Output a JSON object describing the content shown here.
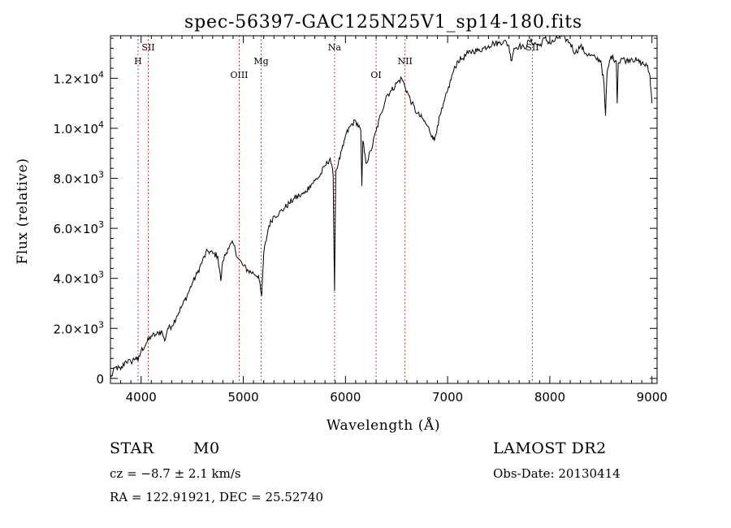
{
  "chart_data": {
    "type": "line",
    "title": "spec-56397-GAC125N25V1_sp14-180.fits",
    "xlabel": "Wavelength (Å)",
    "ylabel": "Flux (relative)",
    "xlim": [
      3700,
      9050
    ],
    "ylim": [
      -200,
      13700
    ],
    "x_ticks": [
      {
        "value": 4000,
        "label": "4000"
      },
      {
        "value": 5000,
        "label": "5000"
      },
      {
        "value": 6000,
        "label": "6000"
      },
      {
        "value": 7000,
        "label": "7000"
      },
      {
        "value": 8000,
        "label": "8000"
      },
      {
        "value": 9000,
        "label": "9000"
      }
    ],
    "y_ticks": [
      {
        "value": 0,
        "label": "0"
      },
      {
        "value": 2000,
        "mant": "2.0×10",
        "exp": "3"
      },
      {
        "value": 4000,
        "mant": "4.0×10",
        "exp": "3"
      },
      {
        "value": 6000,
        "mant": "6.0×10",
        "exp": "3"
      },
      {
        "value": 8000,
        "mant": "8.0×10",
        "exp": "3"
      },
      {
        "value": 10000,
        "mant": "1.0×10",
        "exp": "4"
      },
      {
        "value": 12000,
        "mant": "1.2×10",
        "exp": "4"
      }
    ],
    "line_color": "#000000",
    "marker_color": "#cc0000",
    "grid": false,
    "lines": [
      {
        "label": "H",
        "wavelength": 3970,
        "label_level": 2
      },
      {
        "label": "SII",
        "wavelength": 4070,
        "label_level": 1
      },
      {
        "label": "OIII",
        "wavelength": 4960,
        "label_level": 3
      },
      {
        "label": "Mg",
        "wavelength": 5175,
        "label_level": 2
      },
      {
        "label": "Na",
        "wavelength": 5893,
        "label_level": 1
      },
      {
        "label": "OI",
        "wavelength": 6300,
        "label_level": 3
      },
      {
        "label": "NII",
        "wavelength": 6583,
        "label_level": 2
      },
      {
        "label": "SII",
        "wavelength": 7830,
        "label_level": 1
      }
    ],
    "spectrum": {
      "x": [
        3700,
        3750,
        3800,
        3850,
        3900,
        3950,
        3970,
        4000,
        4050,
        4100,
        4150,
        4200,
        4230,
        4260,
        4300,
        4350,
        4400,
        4450,
        4500,
        4550,
        4600,
        4650,
        4700,
        4750,
        4780,
        4800,
        4850,
        4900,
        4950,
        5000,
        5050,
        5100,
        5150,
        5170,
        5180,
        5200,
        5250,
        5300,
        5350,
        5400,
        5450,
        5500,
        5550,
        5600,
        5650,
        5700,
        5750,
        5800,
        5850,
        5880,
        5893,
        5905,
        5930,
        5980,
        6000,
        6050,
        6100,
        6150,
        6160,
        6170,
        6200,
        6250,
        6300,
        6350,
        6400,
        6450,
        6500,
        6550,
        6580,
        6620,
        6650,
        6700,
        6750,
        6800,
        6850,
        6870,
        6900,
        6950,
        7000,
        7050,
        7100,
        7150,
        7200,
        7250,
        7300,
        7350,
        7400,
        7450,
        7500,
        7550,
        7600,
        7620,
        7650,
        7700,
        7750,
        7800,
        7850,
        7900,
        7950,
        8000,
        8050,
        8100,
        8150,
        8200,
        8250,
        8300,
        8350,
        8400,
        8450,
        8500,
        8530,
        8545,
        8560,
        8600,
        8650,
        8660,
        8670,
        8700,
        8750,
        8800,
        8850,
        8900,
        8950,
        8980,
        9000
      ],
      "y": [
        0,
        450,
        350,
        700,
        650,
        850,
        700,
        1100,
        1400,
        1700,
        1750,
        1900,
        1500,
        2000,
        2100,
        2500,
        2900,
        3300,
        3800,
        4200,
        4700,
        5100,
        5000,
        4900,
        3900,
        4700,
        5200,
        5400,
        4800,
        4500,
        4300,
        4200,
        4100,
        3500,
        3300,
        5000,
        6100,
        6500,
        6600,
        6800,
        7000,
        7200,
        7300,
        7400,
        7700,
        7900,
        8100,
        8500,
        8800,
        8100,
        3500,
        8300,
        8600,
        9300,
        9700,
        10100,
        10300,
        9900,
        7700,
        9500,
        8600,
        9100,
        9900,
        10600,
        11300,
        11500,
        11800,
        12000,
        11700,
        11300,
        11000,
        10600,
        10400,
        10100,
        9700,
        9500,
        10100,
        10800,
        11500,
        12200,
        12700,
        12800,
        13000,
        13100,
        13100,
        13200,
        13300,
        13400,
        13400,
        13500,
        13300,
        12700,
        13200,
        13300,
        13200,
        13500,
        13400,
        13300,
        13600,
        13400,
        13500,
        13700,
        13600,
        13400,
        13000,
        13300,
        13000,
        12900,
        12800,
        12700,
        11800,
        10500,
        12200,
        12900,
        12700,
        11000,
        12600,
        12800,
        12700,
        12800,
        12700,
        12600,
        12500,
        12100,
        11000
      ]
    }
  },
  "footer": {
    "object_class": "STAR",
    "subclass": "M0",
    "redshift": "cz = −8.7 ± 2.1 km/s",
    "coords": "RA = 122.91921, DEC =  25.52740",
    "survey": "LAMOST DR2",
    "obs_date": "Obs-Date: 20130414"
  }
}
